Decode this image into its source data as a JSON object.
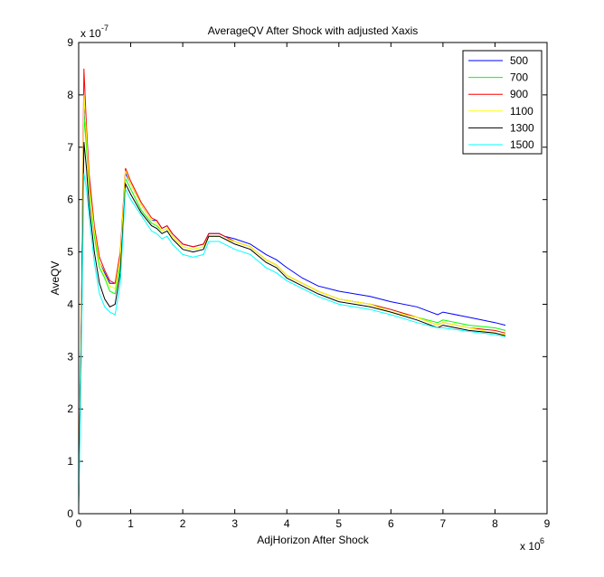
{
  "chart_data": {
    "type": "line",
    "title": "AverageQV After Shock with adjusted Xaxis",
    "xlabel": "AdjHorizon After Shock",
    "ylabel": "AveQV",
    "x_multiplier": "x 10",
    "x_multiplier_exp": "6",
    "y_multiplier": "x 10",
    "y_multiplier_exp": "-7",
    "xlim": [
      0,
      9
    ],
    "ylim": [
      0,
      9
    ],
    "x_ticks": [
      "0",
      "1",
      "2",
      "3",
      "4",
      "5",
      "6",
      "7",
      "8",
      "9"
    ],
    "y_ticks": [
      "0",
      "1",
      "2",
      "3",
      "4",
      "5",
      "6",
      "7",
      "8",
      "9"
    ],
    "grid": false,
    "legend_position": "top-right",
    "x": [
      0.0,
      0.05,
      0.1,
      0.15,
      0.2,
      0.3,
      0.4,
      0.5,
      0.6,
      0.7,
      0.8,
      0.9,
      1.0,
      1.2,
      1.4,
      1.5,
      1.6,
      1.7,
      1.8,
      1.9,
      2.0,
      2.2,
      2.4,
      2.5,
      2.7,
      2.8,
      3.0,
      3.3,
      3.6,
      3.8,
      4.0,
      4.3,
      4.6,
      5.0,
      5.3,
      5.6,
      6.0,
      6.5,
      6.9,
      7.0,
      7.5,
      8.0,
      8.2
    ],
    "series": [
      {
        "name": "500",
        "color": "#0000ff",
        "values": [
          0.3,
          3.5,
          7.9,
          7.2,
          6.4,
          5.4,
          4.8,
          4.6,
          4.4,
          4.4,
          4.9,
          6.5,
          6.3,
          5.9,
          5.6,
          5.6,
          5.45,
          5.5,
          5.35,
          5.25,
          5.15,
          5.1,
          5.15,
          5.35,
          5.35,
          5.3,
          5.25,
          5.15,
          4.95,
          4.85,
          4.7,
          4.5,
          4.35,
          4.25,
          4.2,
          4.15,
          4.05,
          3.95,
          3.8,
          3.85,
          3.75,
          3.65,
          3.6
        ]
      },
      {
        "name": "700",
        "color": "#00ff00",
        "values": [
          0.3,
          3.4,
          7.6,
          7.0,
          6.2,
          5.3,
          4.7,
          4.5,
          4.25,
          4.2,
          4.75,
          6.4,
          6.2,
          5.8,
          5.55,
          5.5,
          5.4,
          5.45,
          5.3,
          5.2,
          5.1,
          5.05,
          5.1,
          5.3,
          5.3,
          5.25,
          5.2,
          5.1,
          4.85,
          4.75,
          4.55,
          4.4,
          4.25,
          4.1,
          4.05,
          4.0,
          3.9,
          3.75,
          3.65,
          3.7,
          3.6,
          3.55,
          3.5
        ]
      },
      {
        "name": "900",
        "color": "#ff0000",
        "values": [
          0.4,
          3.6,
          8.5,
          7.4,
          6.5,
          5.5,
          4.9,
          4.65,
          4.45,
          4.4,
          5.0,
          6.6,
          6.35,
          5.95,
          5.65,
          5.6,
          5.45,
          5.5,
          5.35,
          5.25,
          5.15,
          5.1,
          5.15,
          5.35,
          5.35,
          5.3,
          5.2,
          5.1,
          4.85,
          4.75,
          4.55,
          4.4,
          4.25,
          4.1,
          4.05,
          4.0,
          3.9,
          3.75,
          3.6,
          3.65,
          3.55,
          3.5,
          3.45
        ]
      },
      {
        "name": "1100",
        "color": "#ffff00",
        "values": [
          0.3,
          3.5,
          8.0,
          7.2,
          6.3,
          5.4,
          4.8,
          4.55,
          4.35,
          4.3,
          4.9,
          6.55,
          6.3,
          5.9,
          5.6,
          5.55,
          5.4,
          5.45,
          5.3,
          5.2,
          5.1,
          5.05,
          5.1,
          5.3,
          5.3,
          5.25,
          5.2,
          5.1,
          4.85,
          4.75,
          4.55,
          4.4,
          4.25,
          4.1,
          4.05,
          4.0,
          3.85,
          3.75,
          3.6,
          3.65,
          3.55,
          3.45,
          3.42
        ]
      },
      {
        "name": "1300",
        "color": "#000000",
        "values": [
          0.2,
          3.3,
          7.1,
          6.6,
          5.9,
          5.0,
          4.4,
          4.1,
          3.95,
          4.0,
          4.6,
          6.3,
          6.1,
          5.75,
          5.5,
          5.45,
          5.35,
          5.4,
          5.25,
          5.15,
          5.05,
          5.0,
          5.05,
          5.3,
          5.3,
          5.25,
          5.15,
          5.05,
          4.8,
          4.7,
          4.5,
          4.35,
          4.2,
          4.05,
          4.0,
          3.95,
          3.85,
          3.7,
          3.55,
          3.6,
          3.5,
          3.45,
          3.4
        ]
      },
      {
        "name": "1500",
        "color": "#00ffff",
        "values": [
          0.1,
          3.0,
          6.5,
          6.2,
          5.7,
          4.8,
          4.2,
          3.95,
          3.85,
          3.8,
          4.4,
          6.2,
          6.0,
          5.7,
          5.4,
          5.35,
          5.25,
          5.3,
          5.15,
          5.05,
          4.95,
          4.9,
          4.95,
          5.2,
          5.2,
          5.15,
          5.05,
          4.95,
          4.7,
          4.6,
          4.45,
          4.3,
          4.15,
          4.0,
          3.95,
          3.9,
          3.8,
          3.65,
          3.55,
          3.55,
          3.48,
          3.42,
          3.38
        ]
      }
    ]
  }
}
